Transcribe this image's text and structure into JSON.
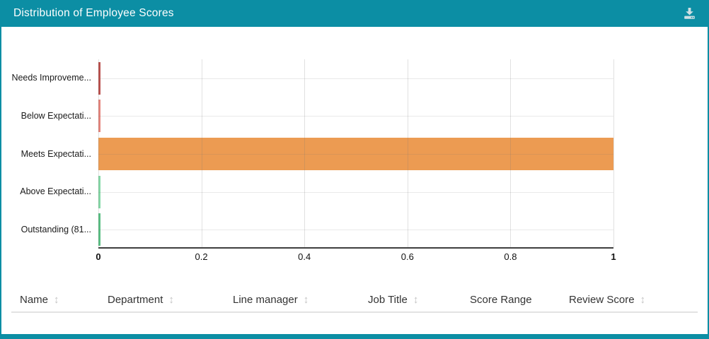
{
  "window": {
    "title": "Distribution of Employee Scores"
  },
  "theme": {
    "accent_teal": "#0C8EA4",
    "axis_color": "#3f3f3f",
    "grid_color": "#e8e8e8",
    "sort_icon_color": "#c4c4c4"
  },
  "header": {
    "download_icon": "download-icon"
  },
  "chart_data": {
    "type": "bar",
    "orientation": "horizontal",
    "title": "Distribution of Employee Scores",
    "categories": [
      "Needs Improveme...",
      "Below Expectati...",
      "Meets Expectati...",
      "Above Expectati...",
      "Outstanding (81..."
    ],
    "values": [
      0,
      0,
      1,
      0,
      0
    ],
    "bar_colors": [
      "#BA504C",
      "#E5837B",
      "#EC9B52",
      "#84D8A6",
      "#58BE82"
    ],
    "xlabel": "",
    "ylabel": "",
    "xlim": [
      0,
      1
    ],
    "x_ticks": [
      {
        "label": "0",
        "value": 0,
        "bold": true
      },
      {
        "label": "0.2",
        "value": 0.2,
        "bold": false
      },
      {
        "label": "0.4",
        "value": 0.4,
        "bold": false
      },
      {
        "label": "0.6",
        "value": 0.6,
        "bold": false
      },
      {
        "label": "0.8",
        "value": 0.8,
        "bold": false
      },
      {
        "label": "1",
        "value": 1,
        "bold": true
      }
    ],
    "grid": true,
    "legend_position": "none"
  },
  "table": {
    "sort_glyph": "↕",
    "columns": [
      {
        "label": "Name",
        "sortable": true
      },
      {
        "label": "Department",
        "sortable": true
      },
      {
        "label": "Line manager",
        "sortable": true
      },
      {
        "label": "Job Title",
        "sortable": true
      },
      {
        "label": "Score Range",
        "sortable": false
      },
      {
        "label": "Review Score",
        "sortable": true
      }
    ]
  }
}
